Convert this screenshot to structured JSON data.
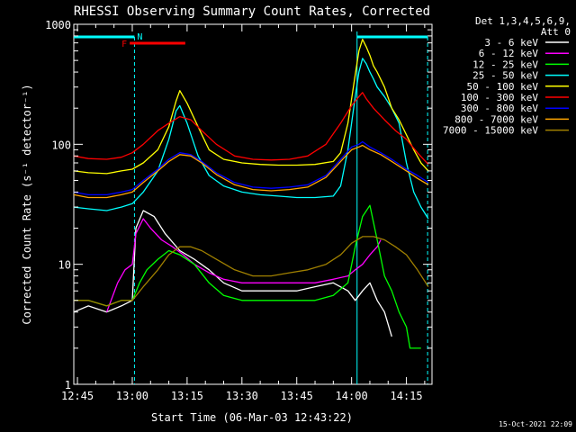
{
  "chart_data": {
    "type": "line",
    "title": "RHESSI Observing Summary Count Rates, Corrected",
    "xlabel": "Start Time (06-Mar-03 12:43:22)",
    "ylabel": "Corrected Count Rate (s⁻¹ detector⁻¹)",
    "x_unit": "minutes since 12:43",
    "xlim": [
      1,
      99
    ],
    "ylim": [
      1,
      1000
    ],
    "y_scale": "log",
    "x_ticks": [
      {
        "x": 2,
        "label": "12:45"
      },
      {
        "x": 17,
        "label": "13:00"
      },
      {
        "x": 32,
        "label": "13:15"
      },
      {
        "x": 47,
        "label": "13:30"
      },
      {
        "x": 62,
        "label": "13:45"
      },
      {
        "x": 77,
        "label": "14:00"
      },
      {
        "x": 92,
        "label": "14:15"
      }
    ],
    "y_ticks": [
      {
        "y": 1,
        "label": "1"
      },
      {
        "y": 10,
        "label": "10"
      },
      {
        "y": 100,
        "label": "100"
      },
      {
        "y": 1000,
        "label": "1000"
      }
    ],
    "legend_header": [
      "Det 1,3,4,5,6,9,",
      "Att 0"
    ],
    "legend_position": "right",
    "annotations": [
      {
        "label": "F",
        "color": "#ff0000"
      },
      {
        "label": "N",
        "color": "#00ffff"
      }
    ],
    "series": [
      {
        "name": "3 - 6 keV",
        "color": "#ffffff",
        "points": [
          [
            1,
            4
          ],
          [
            5,
            4.5
          ],
          [
            10,
            4
          ],
          [
            14,
            4.5
          ],
          [
            17,
            5
          ],
          [
            18,
            20
          ],
          [
            20,
            28
          ],
          [
            23,
            25
          ],
          [
            26,
            18
          ],
          [
            30,
            13
          ],
          [
            34,
            11
          ],
          [
            38,
            9
          ],
          [
            42,
            7
          ],
          [
            47,
            6
          ],
          [
            52,
            6
          ],
          [
            57,
            6
          ],
          [
            62,
            6
          ],
          [
            67,
            6.5
          ],
          [
            72,
            7
          ],
          [
            76,
            6
          ],
          [
            78,
            5
          ],
          [
            80,
            6
          ],
          [
            82,
            7
          ],
          [
            84,
            5
          ],
          [
            86,
            4
          ],
          [
            88,
            2.5
          ]
        ]
      },
      {
        "name": "6 - 12 keV",
        "color": "#ff00ff",
        "points": [
          [
            10,
            4
          ],
          [
            13,
            7
          ],
          [
            15,
            9
          ],
          [
            17,
            10
          ],
          [
            18,
            18
          ],
          [
            20,
            24
          ],
          [
            22,
            20
          ],
          [
            25,
            16
          ],
          [
            28,
            14
          ],
          [
            31,
            12
          ],
          [
            34,
            10
          ],
          [
            38,
            8.5
          ],
          [
            42,
            7.5
          ],
          [
            47,
            7
          ],
          [
            52,
            7
          ],
          [
            57,
            7
          ],
          [
            62,
            7
          ],
          [
            67,
            7
          ],
          [
            72,
            7.5
          ],
          [
            76,
            8
          ],
          [
            78,
            9
          ],
          [
            80,
            10
          ],
          [
            82,
            12
          ],
          [
            84,
            14
          ],
          [
            85,
            16
          ]
        ]
      },
      {
        "name": "12 - 25 keV",
        "color": "#00ff00",
        "points": [
          [
            1,
            5
          ],
          [
            5,
            5
          ],
          [
            10,
            4.5
          ],
          [
            14,
            5
          ],
          [
            17,
            5
          ],
          [
            19,
            7
          ],
          [
            21,
            9
          ],
          [
            24,
            11
          ],
          [
            27,
            13
          ],
          [
            30,
            12
          ],
          [
            34,
            10
          ],
          [
            38,
            7
          ],
          [
            42,
            5.5
          ],
          [
            47,
            5
          ],
          [
            52,
            5
          ],
          [
            57,
            5
          ],
          [
            62,
            5
          ],
          [
            67,
            5
          ],
          [
            72,
            5.5
          ],
          [
            76,
            7
          ],
          [
            78,
            14
          ],
          [
            80,
            25
          ],
          [
            82,
            31
          ],
          [
            84,
            16
          ],
          [
            86,
            8
          ],
          [
            88,
            6
          ],
          [
            90,
            4
          ],
          [
            92,
            3
          ],
          [
            93,
            2
          ],
          [
            96,
            2
          ]
        ]
      },
      {
        "name": "25 - 50 keV",
        "color": "#00ffff",
        "points": [
          [
            1,
            30
          ],
          [
            5,
            29
          ],
          [
            10,
            28
          ],
          [
            14,
            30
          ],
          [
            17,
            32
          ],
          [
            20,
            40
          ],
          [
            24,
            60
          ],
          [
            27,
            110
          ],
          [
            29,
            190
          ],
          [
            30,
            210
          ],
          [
            32,
            150
          ],
          [
            35,
            80
          ],
          [
            38,
            55
          ],
          [
            42,
            45
          ],
          [
            47,
            40
          ],
          [
            52,
            38
          ],
          [
            57,
            37
          ],
          [
            62,
            36
          ],
          [
            67,
            36
          ],
          [
            72,
            37
          ],
          [
            74,
            45
          ],
          [
            76,
            90
          ],
          [
            78,
            250
          ],
          [
            79,
            400
          ],
          [
            80,
            520
          ],
          [
            81,
            470
          ],
          [
            82,
            400
          ],
          [
            83,
            350
          ],
          [
            84,
            300
          ],
          [
            86,
            250
          ],
          [
            88,
            200
          ],
          [
            90,
            150
          ],
          [
            92,
            70
          ],
          [
            94,
            40
          ],
          [
            96,
            30
          ],
          [
            98,
            24
          ]
        ]
      },
      {
        "name": "50 - 100 keV",
        "color": "#ffff00",
        "points": [
          [
            1,
            60
          ],
          [
            5,
            58
          ],
          [
            10,
            57
          ],
          [
            14,
            60
          ],
          [
            17,
            62
          ],
          [
            20,
            70
          ],
          [
            24,
            90
          ],
          [
            27,
            140
          ],
          [
            29,
            230
          ],
          [
            30,
            280
          ],
          [
            32,
            220
          ],
          [
            35,
            140
          ],
          [
            38,
            90
          ],
          [
            42,
            75
          ],
          [
            47,
            70
          ],
          [
            52,
            68
          ],
          [
            57,
            67
          ],
          [
            62,
            67
          ],
          [
            67,
            68
          ],
          [
            72,
            72
          ],
          [
            74,
            85
          ],
          [
            76,
            150
          ],
          [
            78,
            380
          ],
          [
            79,
            600
          ],
          [
            80,
            750
          ],
          [
            81,
            650
          ],
          [
            82,
            550
          ],
          [
            83,
            450
          ],
          [
            84,
            400
          ],
          [
            86,
            300
          ],
          [
            88,
            200
          ],
          [
            90,
            160
          ],
          [
            92,
            120
          ],
          [
            94,
            90
          ],
          [
            96,
            70
          ],
          [
            98,
            60
          ]
        ]
      },
      {
        "name": "100 - 300 keV",
        "color": "#ff0000",
        "points": [
          [
            1,
            80
          ],
          [
            5,
            76
          ],
          [
            10,
            75
          ],
          [
            14,
            78
          ],
          [
            17,
            85
          ],
          [
            20,
            100
          ],
          [
            24,
            130
          ],
          [
            27,
            150
          ],
          [
            30,
            170
          ],
          [
            33,
            160
          ],
          [
            36,
            130
          ],
          [
            40,
            100
          ],
          [
            45,
            80
          ],
          [
            50,
            75
          ],
          [
            55,
            74
          ],
          [
            60,
            75
          ],
          [
            65,
            80
          ],
          [
            70,
            100
          ],
          [
            74,
            150
          ],
          [
            77,
            210
          ],
          [
            79,
            250
          ],
          [
            80,
            270
          ],
          [
            81,
            240
          ],
          [
            83,
            200
          ],
          [
            86,
            160
          ],
          [
            89,
            130
          ],
          [
            92,
            110
          ],
          [
            95,
            85
          ],
          [
            98,
            68
          ]
        ]
      },
      {
        "name": "300 - 800 keV",
        "color": "#0000ff",
        "points": [
          [
            1,
            40
          ],
          [
            5,
            38
          ],
          [
            10,
            38
          ],
          [
            14,
            40
          ],
          [
            17,
            42
          ],
          [
            20,
            50
          ],
          [
            24,
            62
          ],
          [
            27,
            75
          ],
          [
            30,
            85
          ],
          [
            33,
            82
          ],
          [
            36,
            72
          ],
          [
            40,
            58
          ],
          [
            45,
            48
          ],
          [
            50,
            44
          ],
          [
            55,
            43
          ],
          [
            60,
            44
          ],
          [
            65,
            46
          ],
          [
            70,
            55
          ],
          [
            74,
            75
          ],
          [
            77,
            95
          ],
          [
            79,
            100
          ],
          [
            80,
            105
          ],
          [
            82,
            95
          ],
          [
            85,
            85
          ],
          [
            88,
            75
          ],
          [
            92,
            62
          ],
          [
            95,
            55
          ],
          [
            98,
            48
          ]
        ]
      },
      {
        "name": "800 - 7000 keV",
        "color": "#ffa500",
        "points": [
          [
            1,
            38
          ],
          [
            5,
            36
          ],
          [
            10,
            36
          ],
          [
            14,
            38
          ],
          [
            17,
            40
          ],
          [
            20,
            48
          ],
          [
            24,
            60
          ],
          [
            27,
            72
          ],
          [
            30,
            82
          ],
          [
            33,
            80
          ],
          [
            36,
            70
          ],
          [
            40,
            56
          ],
          [
            45,
            46
          ],
          [
            50,
            42
          ],
          [
            55,
            41
          ],
          [
            60,
            42
          ],
          [
            65,
            44
          ],
          [
            70,
            53
          ],
          [
            74,
            72
          ],
          [
            77,
            90
          ],
          [
            79,
            95
          ],
          [
            80,
            98
          ],
          [
            82,
            90
          ],
          [
            85,
            82
          ],
          [
            88,
            72
          ],
          [
            92,
            60
          ],
          [
            95,
            52
          ],
          [
            98,
            46
          ]
        ]
      },
      {
        "name": "7000 - 15000 keV",
        "color": "#a08000",
        "points": [
          [
            1,
            5
          ],
          [
            5,
            5
          ],
          [
            10,
            4.5
          ],
          [
            14,
            5
          ],
          [
            17,
            5
          ],
          [
            20,
            6.5
          ],
          [
            24,
            9
          ],
          [
            27,
            12
          ],
          [
            30,
            14
          ],
          [
            33,
            14
          ],
          [
            36,
            13
          ],
          [
            40,
            11
          ],
          [
            45,
            9
          ],
          [
            50,
            8
          ],
          [
            55,
            8
          ],
          [
            60,
            8.5
          ],
          [
            65,
            9
          ],
          [
            70,
            10
          ],
          [
            74,
            12
          ],
          [
            77,
            15
          ],
          [
            80,
            17
          ],
          [
            83,
            17
          ],
          [
            86,
            16
          ],
          [
            89,
            14
          ],
          [
            92,
            12
          ],
          [
            95,
            9
          ],
          [
            98,
            6.5
          ]
        ]
      }
    ]
  },
  "footer_timestamp": "15-Oct-2021 22:09"
}
